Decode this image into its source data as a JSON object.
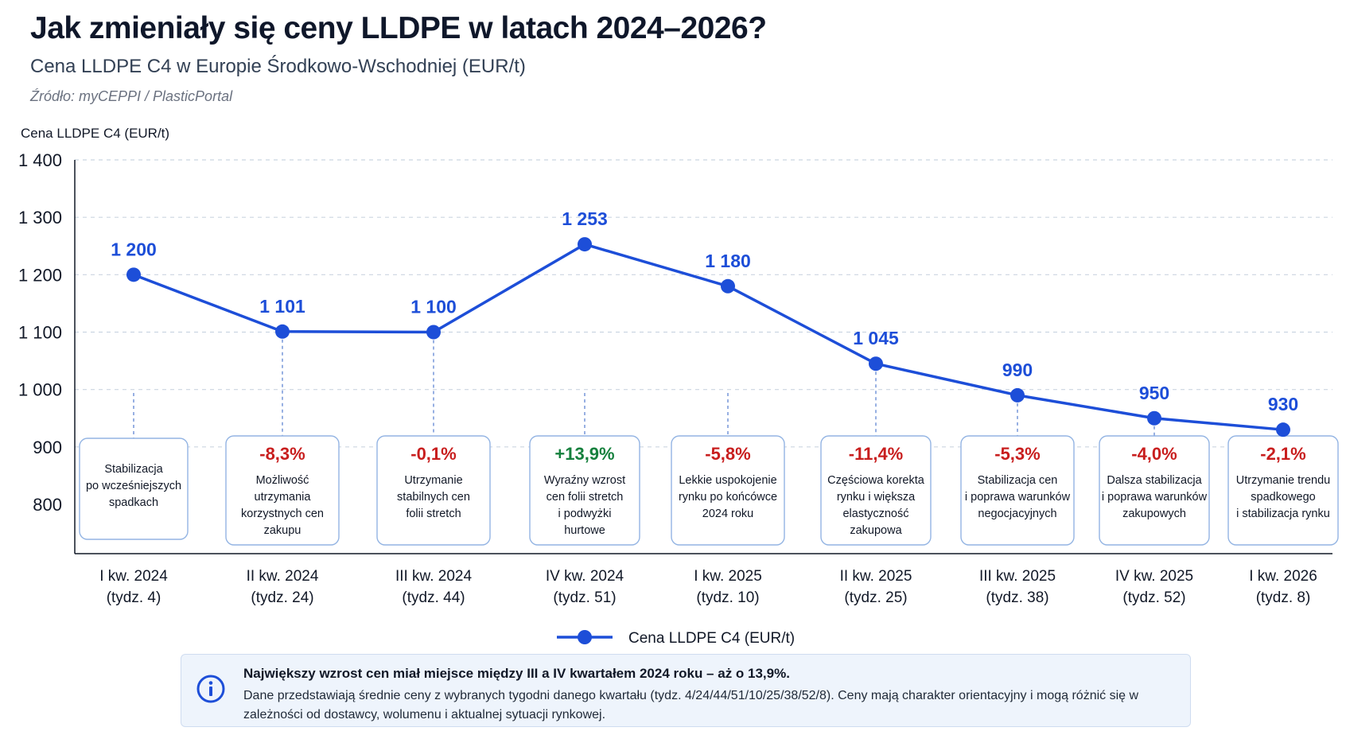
{
  "header": {
    "title": "Jak zmieniały się ceny LLDPE w latach 2024–2026?",
    "subtitle": "Cena LLDPE C4 w Europie Środkowo-Wschodniej (EUR/t)",
    "source": "Źródło: myCEPPI / PlasticPortal"
  },
  "chart_data": {
    "type": "line",
    "ylabel": "Cena LLDPE C4 (EUR/t)",
    "xlabel": "",
    "ylim": [
      800,
      1400
    ],
    "yticks": [
      800,
      900,
      1000,
      1100,
      1200,
      1300,
      1400
    ],
    "ytick_labels": [
      "800",
      "900",
      "1 000",
      "1 100",
      "1 200",
      "1 300",
      "1 400"
    ],
    "grid": "horizontal-dashed",
    "legend_position": "bottom-center",
    "categories": [
      [
        "I kw. 2024",
        "(tydz. 4)"
      ],
      [
        "II kw. 2024",
        "(tydz. 24)"
      ],
      [
        "III kw. 2024",
        "(tydz. 44)"
      ],
      [
        "IV kw. 2024",
        "(tydz. 51)"
      ],
      [
        "I kw. 2025",
        "(tydz. 10)"
      ],
      [
        "II kw. 2025",
        "(tydz. 25)"
      ],
      [
        "III kw. 2025",
        "(tydz. 38)"
      ],
      [
        "IV kw. 2025",
        "(tydz. 52)"
      ],
      [
        "I kw. 2026",
        "(tydz. 8)"
      ]
    ],
    "series": [
      {
        "name": "Cena LLDPE C4 (EUR/t)",
        "color": "#1d4ed8",
        "values": [
          1200,
          1101,
          1100,
          1253,
          1180,
          1045,
          990,
          950,
          930
        ],
        "value_labels": [
          "1 200",
          "1 101",
          "1 100",
          "1 253",
          "1 180",
          "1 045",
          "990",
          "950",
          "930"
        ]
      }
    ],
    "annotations": [
      {
        "change": "",
        "trend": "none",
        "lines": [
          "Stabilizacja",
          "po wcześniejszych",
          "spadkach"
        ]
      },
      {
        "change": "-8,3%",
        "trend": "down",
        "lines": [
          "Możliwość",
          "utrzymania",
          "korzystnych cen",
          "zakupu"
        ]
      },
      {
        "change": "-0,1%",
        "trend": "down",
        "lines": [
          "Utrzymanie",
          "stabilnych cen",
          "folii stretch"
        ]
      },
      {
        "change": "+13,9%",
        "trend": "up",
        "lines": [
          "Wyraźny wzrost",
          "cen folii stretch",
          "i podwyżki",
          "hurtowe"
        ]
      },
      {
        "change": "-5,8%",
        "trend": "down",
        "lines": [
          "Lekkie uspokojenie",
          "rynku po końcówce",
          "2024 roku"
        ]
      },
      {
        "change": "-11,4%",
        "trend": "down",
        "lines": [
          "Częściowa korekta",
          "rynku i większa",
          "elastyczność",
          "zakupowa"
        ]
      },
      {
        "change": "-5,3%",
        "trend": "down",
        "lines": [
          "Stabilizacja cen",
          "i poprawa warunków",
          "negocjacyjnych"
        ]
      },
      {
        "change": "-4,0%",
        "trend": "down",
        "lines": [
          "Dalsza stabilizacja",
          "i poprawa warunków",
          "zakupowych"
        ]
      },
      {
        "change": "-2,1%",
        "trend": "down",
        "lines": [
          "Utrzymanie trendu",
          "spadkowego",
          "i stabilizacja rynku"
        ]
      }
    ],
    "colors": {
      "line": "#1d4ed8",
      "up": "#15803d",
      "down": "#c81e1e",
      "grid": "#cbd5e1",
      "box_border": "#93b4e3"
    }
  },
  "info": {
    "icon": "info-icon",
    "title": "Największy wzrost cen miał miejsce między III a IV kwartałem 2024 roku – aż o 13,9%.",
    "text": "Dane przedstawiają średnie ceny z wybranych tygodni danego kwartału (tydz. 4/24/44/51/10/25/38/52/8). Ceny mają charakter orientacyjny i mogą różnić się w zależności od dostawcy, wolumenu i aktualnej sytuacji rynkowej."
  }
}
